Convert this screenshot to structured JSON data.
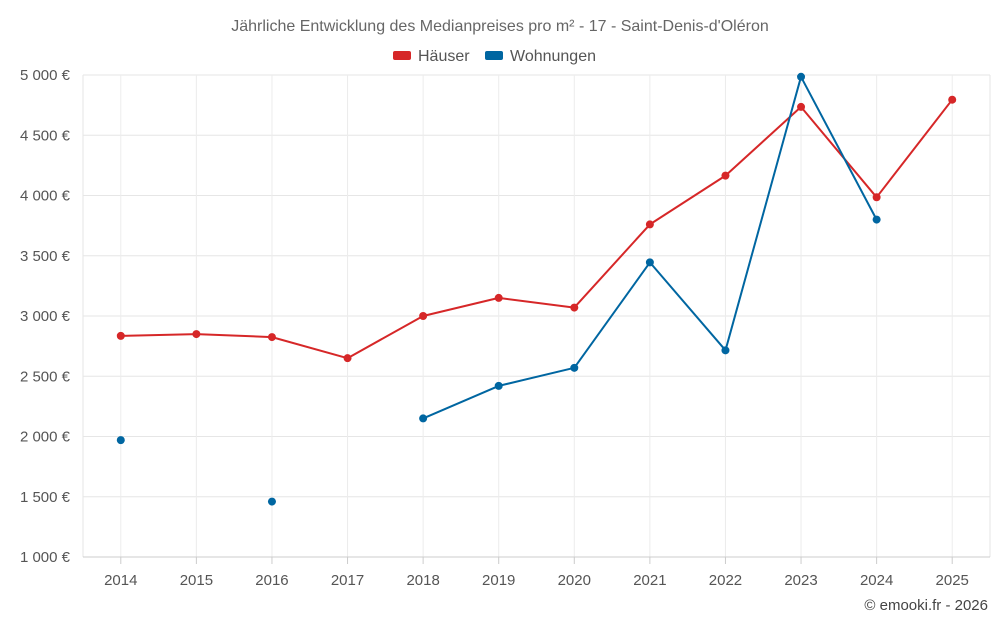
{
  "chart_data": {
    "type": "line",
    "title": "Jährliche Entwicklung des Medianpreises pro m² - 17 - Saint-Denis-d'Oléron",
    "xlabel": "",
    "ylabel": "",
    "categories": [
      "2014",
      "2015",
      "2016",
      "2017",
      "2018",
      "2019",
      "2020",
      "2021",
      "2022",
      "2023",
      "2024",
      "2025"
    ],
    "series": [
      {
        "name": "Häuser",
        "color": "#d62728",
        "values": [
          2835,
          2850,
          2825,
          2650,
          3000,
          3150,
          3070,
          3760,
          4165,
          4735,
          3985,
          4795
        ]
      },
      {
        "name": "Wohnungen",
        "color": "#0066a1",
        "values": [
          1970,
          null,
          1460,
          null,
          2150,
          2420,
          2570,
          3445,
          2715,
          4985,
          3800,
          null
        ]
      }
    ],
    "ylim": [
      1000,
      5000
    ],
    "yticks": [
      1000,
      1500,
      2000,
      2500,
      3000,
      3500,
      4000,
      4500,
      5000
    ],
    "ytick_labels": [
      "1 000 €",
      "1 500 €",
      "2 000 €",
      "2 500 €",
      "3 000 €",
      "3 500 €",
      "4 000 €",
      "4 500 €",
      "5 000 €"
    ],
    "grid": true,
    "legend_position": "top-center"
  },
  "credit": "© emooki.fr - 2026"
}
